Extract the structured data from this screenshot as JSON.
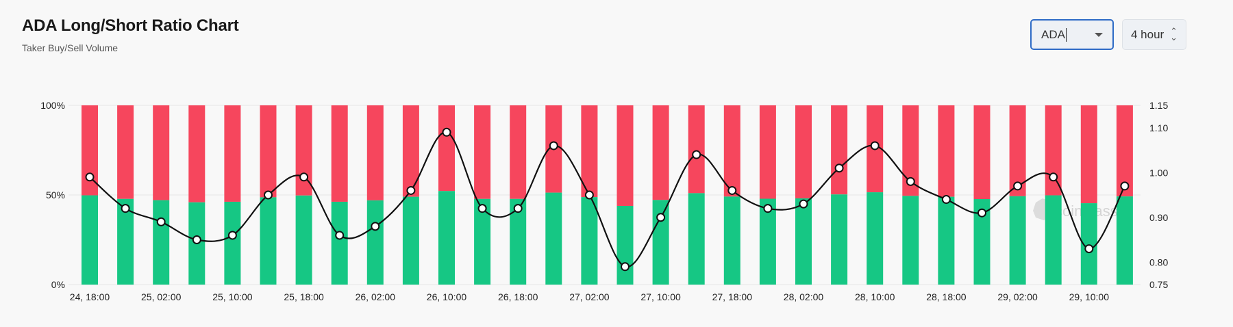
{
  "header": {
    "title": "ADA Long/Short Ratio Chart",
    "subtitle": "Taker Buy/Sell Volume"
  },
  "controls": {
    "symbol_value": "ADA",
    "interval_value": "4 hour"
  },
  "watermark": "coinglass",
  "colors": {
    "long": "#16c784",
    "short": "#f6465d",
    "ratio_line": "#111111",
    "marker_fill": "#ffffff"
  },
  "chart_data": {
    "type": "bar",
    "stacked": true,
    "title": "ADA Long/Short Ratio Chart",
    "subtitle": "Taker Buy/Sell Volume",
    "categories": [
      "24, 18:00",
      "24, 22:00",
      "25, 02:00",
      "25, 06:00",
      "25, 10:00",
      "25, 14:00",
      "25, 18:00",
      "25, 22:00",
      "26, 02:00",
      "26, 06:00",
      "26, 10:00",
      "26, 14:00",
      "26, 18:00",
      "26, 22:00",
      "27, 02:00",
      "27, 06:00",
      "27, 10:00",
      "27, 14:00",
      "27, 18:00",
      "27, 22:00",
      "28, 02:00",
      "28, 06:00",
      "28, 10:00",
      "28, 14:00",
      "28, 18:00",
      "28, 22:00",
      "29, 02:00",
      "29, 06:00",
      "29, 10:00",
      "29, 14:00"
    ],
    "x_tick_labels": [
      "24, 18:00",
      "25, 02:00",
      "25, 10:00",
      "25, 18:00",
      "26, 02:00",
      "26, 10:00",
      "26, 18:00",
      "27, 02:00",
      "27, 10:00",
      "27, 18:00",
      "28, 02:00",
      "28, 10:00",
      "28, 18:00",
      "29, 02:00",
      "29, 10:00"
    ],
    "series": [
      {
        "values": [
          49.8,
          47.8,
          47.1,
          45.9,
          46.2,
          48.7,
          49.7,
          46.2,
          47.0,
          49.0,
          52.2,
          47.8,
          47.8,
          51.3,
          48.8,
          43.9,
          47.2,
          51.0,
          49.1,
          47.9,
          48.1,
          50.3,
          51.5,
          49.5,
          49.0,
          47.7,
          49.3,
          49.8,
          45.4,
          49.2
        ]
      },
      {
        "values": [
          50.2,
          52.2,
          52.9,
          54.1,
          53.8,
          51.3,
          50.3,
          53.8,
          53.0,
          51.0,
          47.8,
          52.2,
          52.2,
          48.7,
          51.2,
          56.1,
          52.8,
          49.0,
          50.9,
          52.1,
          51.9,
          49.7,
          48.5,
          50.5,
          51.0,
          52.3,
          50.7,
          50.2,
          54.6,
          50.8
        ]
      },
      {
        "axis": "right",
        "type": "line",
        "values": [
          0.99,
          0.92,
          0.89,
          0.85,
          0.86,
          0.95,
          0.99,
          0.86,
          0.88,
          0.96,
          1.09,
          0.92,
          0.92,
          1.06,
          0.95,
          0.79,
          0.9,
          1.04,
          0.96,
          0.92,
          0.93,
          1.01,
          1.06,
          0.98,
          0.94,
          0.91,
          0.97,
          0.99,
          0.83,
          0.97
        ]
      }
    ],
    "ylim_left": [
      0,
      100
    ],
    "yticks_left": [
      "0%",
      "50%",
      "100%"
    ],
    "ylim_right": [
      0.75,
      1.15
    ],
    "yticks_right": [
      "0.75",
      "0.80",
      "0.90",
      "1.00",
      "1.10",
      "1.15"
    ],
    "grid": true,
    "legend": "none"
  }
}
